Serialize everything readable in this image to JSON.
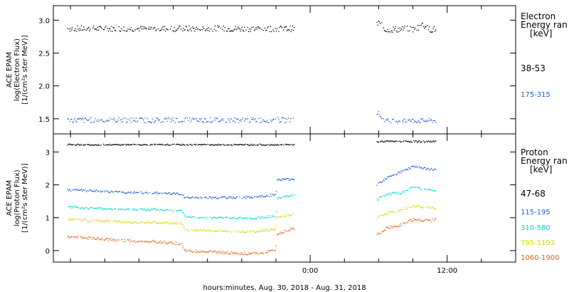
{
  "footer_label": "hours:minutes, Aug. 30, 2018 - Aug. 31, 2018",
  "chart_data": [
    {
      "type": "scatter",
      "panel": "electron",
      "ylabel_lines": [
        "ACE EPAM",
        "log(Electron Flux)",
        "[1/(cm²s ster MeV)]"
      ],
      "legend_title_lines": [
        "Electron",
        "Energy ran",
        "[keV]"
      ],
      "ylim": [
        1.27,
        3.22
      ],
      "yticks": [
        1.5,
        2.0,
        2.5,
        3.0
      ],
      "ytick_labels": [
        "1.5",
        "2.0",
        "2.5",
        "3.0"
      ],
      "series": [
        {
          "name": "38-53",
          "color": "#000000",
          "segments": [
            {
              "x_start": -21.25,
              "x_end": -1.4,
              "mean": 2.87,
              "amp": 0.045,
              "bumps": []
            },
            {
              "x_start": 5.85,
              "x_end": 11.0,
              "mean": 2.86,
              "amp": 0.05,
              "bumps": [
                {
                  "x": 9.8,
                  "dy": 0.08
                },
                {
                  "x": 6.0,
                  "dy": 0.1
                }
              ]
            }
          ]
        },
        {
          "name": "175-315",
          "color": "#1f5fd0",
          "segments": [
            {
              "x_start": -21.25,
              "x_end": -1.4,
              "mean": 1.48,
              "amp": 0.04,
              "bumps": []
            },
            {
              "x_start": 5.85,
              "x_end": 11.0,
              "mean": 1.47,
              "amp": 0.035,
              "bumps": [
                {
                  "x": 5.9,
                  "dy": 0.13
                }
              ]
            }
          ]
        }
      ]
    },
    {
      "type": "scatter",
      "panel": "proton",
      "ylabel_lines": [
        "ACE EPAM",
        "log(Proton Flux)",
        "[1/(cm²s ster MeV)]"
      ],
      "legend_title_lines": [
        "Proton",
        "Energy ran",
        "[keV]"
      ],
      "ylim": [
        -0.35,
        3.55
      ],
      "yticks": [
        0,
        1,
        2,
        3
      ],
      "ytick_labels": [
        "0",
        "1",
        "2",
        "3"
      ],
      "series": [
        {
          "name": "47-68",
          "color": "#000000",
          "segments": [
            {
              "x_start": -21.25,
              "x_end": -1.4,
              "mean": 3.22,
              "amp": 0.02,
              "bumps": []
            },
            {
              "x_start": 5.85,
              "x_end": 11.0,
              "mean": 3.32,
              "amp": 0.025,
              "bumps": []
            }
          ]
        },
        {
          "name": "115-195",
          "color": "#1f5fd0",
          "trend": [
            [
              -21.25,
              1.85
            ],
            [
              -17.0,
              1.78
            ],
            [
              -13.5,
              1.75
            ],
            [
              -11.2,
              1.72
            ],
            [
              -11.0,
              1.6
            ],
            [
              -5.0,
              1.62
            ],
            [
              -3.0,
              1.7
            ],
            [
              -2.9,
              2.15
            ],
            [
              -1.4,
              2.18
            ]
          ],
          "segments": [
            {
              "x_start": -21.25,
              "x_end": -1.4,
              "amp": 0.035
            },
            {
              "x_start": 5.85,
              "x_end": 11.0,
              "amp": 0.04
            }
          ],
          "trend2": [
            [
              5.85,
              2.0
            ],
            [
              6.8,
              2.25
            ],
            [
              8.0,
              2.4
            ],
            [
              9.0,
              2.55
            ],
            [
              10.0,
              2.5
            ],
            [
              11.0,
              2.45
            ]
          ]
        },
        {
          "name": "310-580",
          "color": "#00d8d8",
          "trend": [
            [
              -21.25,
              1.32
            ],
            [
              -16.0,
              1.25
            ],
            [
              -13.5,
              1.25
            ],
            [
              -11.2,
              1.2
            ],
            [
              -11.0,
              1.02
            ],
            [
              -5.0,
              0.98
            ],
            [
              -3.0,
              1.05
            ],
            [
              -2.9,
              1.58
            ],
            [
              -1.4,
              1.7
            ]
          ],
          "segments": [
            {
              "x_start": -21.25,
              "x_end": -1.4,
              "amp": 0.03
            },
            {
              "x_start": 5.85,
              "x_end": 11.0,
              "amp": 0.04
            }
          ],
          "trend2": [
            [
              5.85,
              1.55
            ],
            [
              6.8,
              1.72
            ],
            [
              8.0,
              1.75
            ],
            [
              9.0,
              1.92
            ],
            [
              10.0,
              1.85
            ],
            [
              11.0,
              1.82
            ]
          ]
        },
        {
          "name": "795-1193",
          "color": "#d8d800",
          "trend": [
            [
              -21.25,
              0.95
            ],
            [
              -16.0,
              0.87
            ],
            [
              -13.5,
              0.85
            ],
            [
              -11.2,
              0.82
            ],
            [
              -11.0,
              0.62
            ],
            [
              -5.0,
              0.58
            ],
            [
              -3.0,
              0.65
            ],
            [
              -2.9,
              1.0
            ],
            [
              -1.4,
              1.12
            ]
          ],
          "segments": [
            {
              "x_start": -21.25,
              "x_end": -1.4,
              "amp": 0.035
            },
            {
              "x_start": 5.85,
              "x_end": 11.0,
              "amp": 0.04
            }
          ],
          "trend2": [
            [
              5.85,
              1.0
            ],
            [
              6.8,
              1.15
            ],
            [
              8.0,
              1.22
            ],
            [
              9.0,
              1.35
            ],
            [
              10.0,
              1.32
            ],
            [
              11.0,
              1.3
            ]
          ]
        },
        {
          "name": "1060-1900",
          "color": "#e0601a",
          "trend": [
            [
              -21.25,
              0.42
            ],
            [
              -16.0,
              0.3
            ],
            [
              -13.5,
              0.27
            ],
            [
              -11.2,
              0.2
            ],
            [
              -11.0,
              0.0
            ],
            [
              -5.0,
              -0.1
            ],
            [
              -3.0,
              0.0
            ],
            [
              -2.9,
              0.5
            ],
            [
              -1.4,
              0.68
            ]
          ],
          "segments": [
            {
              "x_start": -21.25,
              "x_end": -1.4,
              "amp": 0.045
            },
            {
              "x_start": 5.85,
              "x_end": 11.0,
              "amp": 0.045
            }
          ],
          "trend2": [
            [
              5.85,
              0.5
            ],
            [
              6.8,
              0.7
            ],
            [
              8.0,
              0.78
            ],
            [
              9.0,
              0.95
            ],
            [
              10.0,
              0.9
            ],
            [
              11.0,
              0.95
            ]
          ]
        }
      ]
    }
  ],
  "xaxis": {
    "xlim": [
      -22.5,
      18.0
    ],
    "major_ticks": [
      0,
      12
    ],
    "major_labels": [
      "0:00",
      "12:00"
    ],
    "minor_ticks": [
      -21,
      -18,
      -15,
      -12,
      -9,
      -6,
      -3,
      3,
      6,
      9,
      15
    ]
  }
}
